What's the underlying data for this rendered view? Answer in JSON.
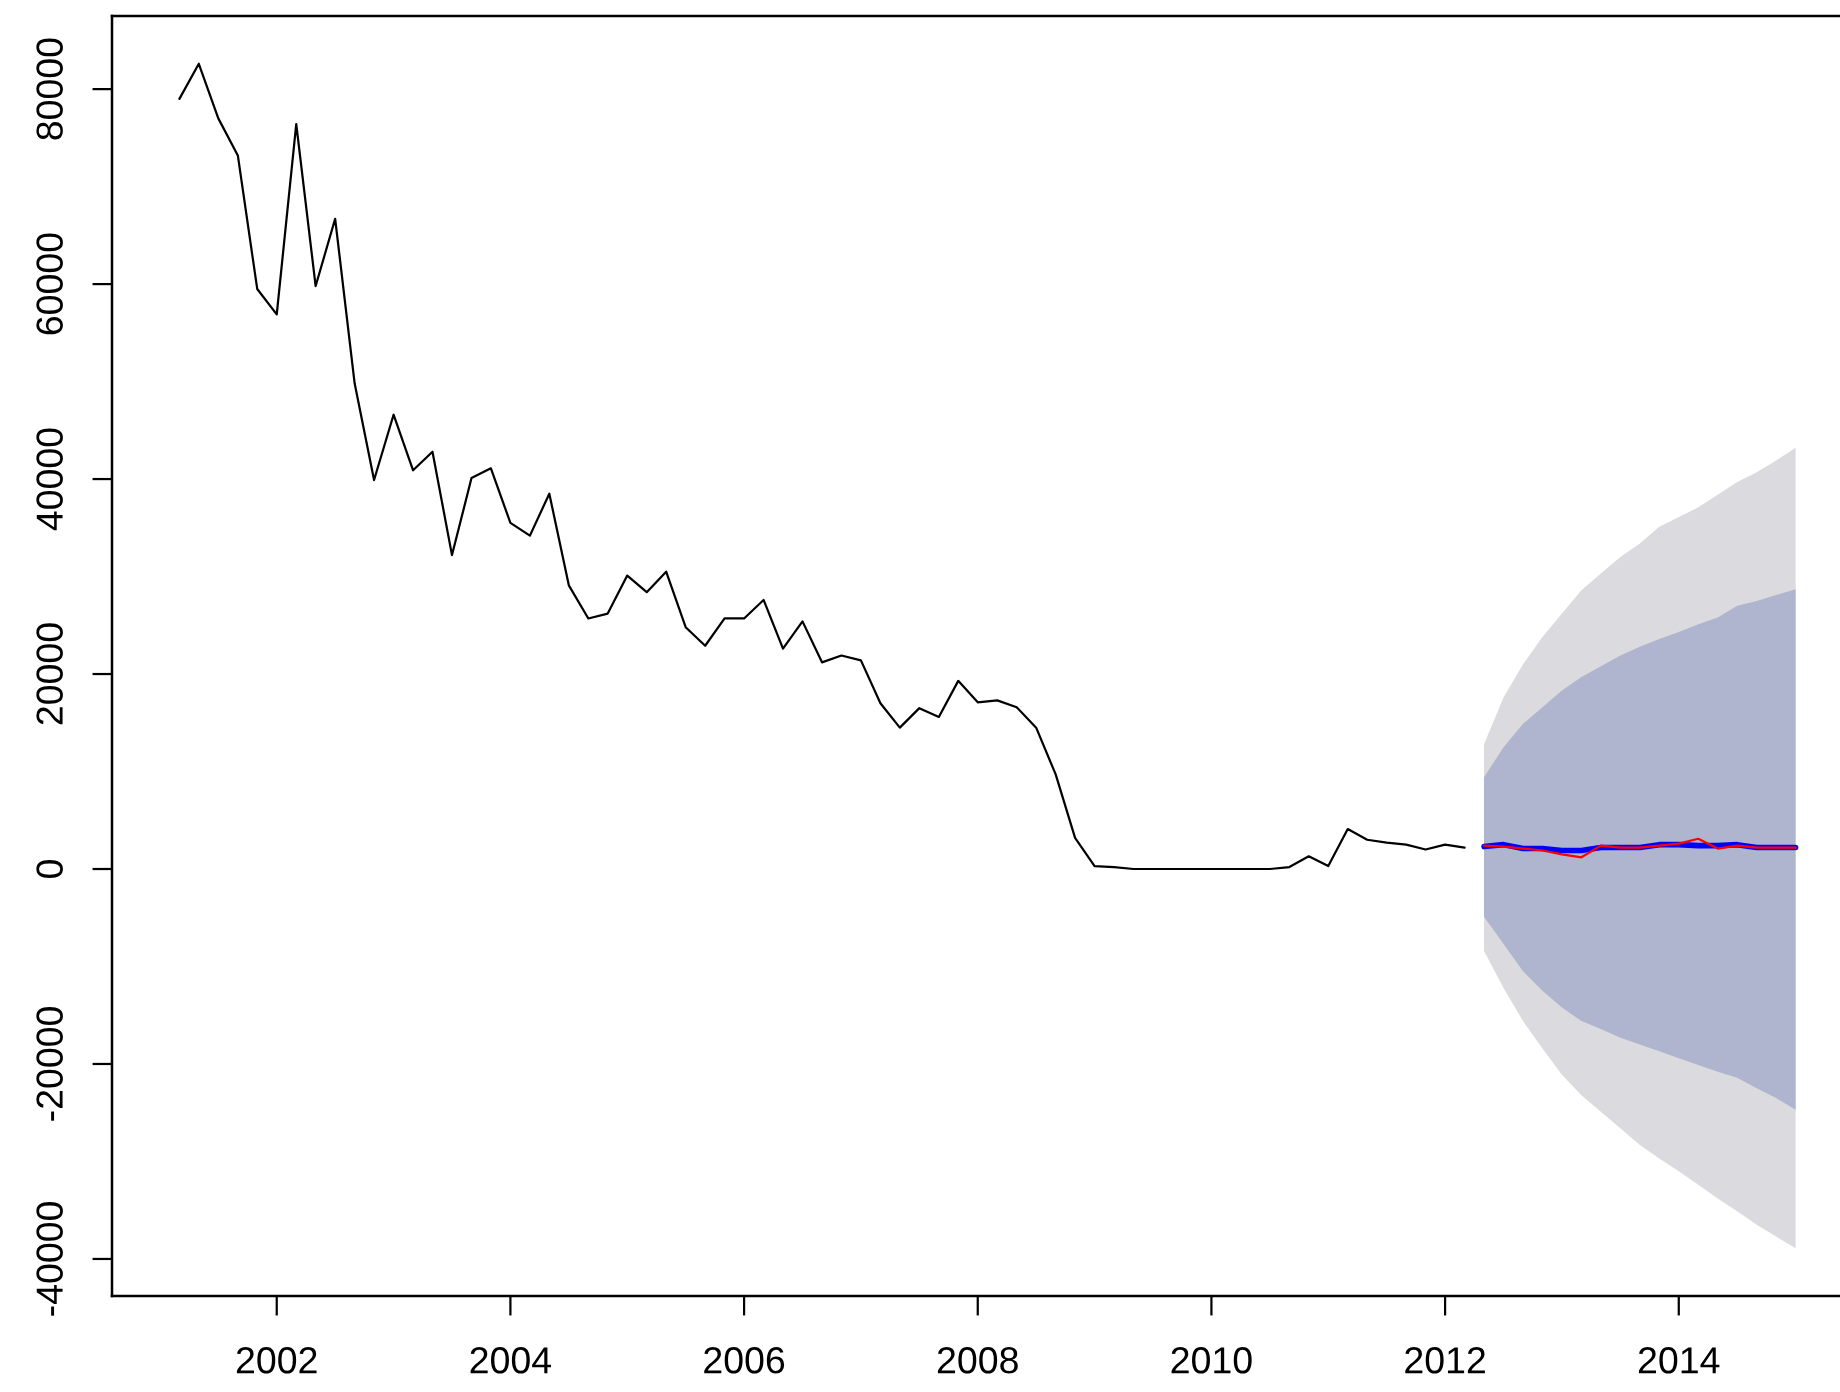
{
  "chart_data": {
    "type": "line",
    "xlim": [
      2000.59,
      2015.38
    ],
    "ylim": [
      -43800,
      87500
    ],
    "xticks": [
      2002,
      2004,
      2006,
      2008,
      2010,
      2012,
      2014
    ],
    "yticks": [
      -40000,
      -20000,
      0,
      20000,
      40000,
      60000,
      80000
    ],
    "grid": false,
    "legend": false,
    "series": [
      {
        "color": "#000000",
        "x": [
          2001.167,
          2001.333,
          2001.5,
          2001.667,
          2001.833,
          2002,
          2002.167,
          2002.333,
          2002.5,
          2002.667,
          2002.833,
          2003,
          2003.167,
          2003.333,
          2003.5,
          2003.667,
          2003.833,
          2004,
          2004.167,
          2004.333,
          2004.5,
          2004.667,
          2004.833,
          2005,
          2005.167,
          2005.333,
          2005.5,
          2005.667,
          2005.833,
          2006,
          2006.167,
          2006.333,
          2006.5,
          2006.667,
          2006.833,
          2007,
          2007.167,
          2007.333,
          2007.5,
          2007.667,
          2007.833,
          2008,
          2008.167,
          2008.333,
          2008.5,
          2008.667,
          2008.833,
          2009,
          2009.167,
          2009.333,
          2009.5,
          2009.667,
          2009.833,
          2010,
          2010.167,
          2010.333,
          2010.5,
          2010.667,
          2010.833,
          2011,
          2011.167,
          2011.333,
          2011.5,
          2011.667,
          2011.833,
          2012,
          2012.167
        ],
        "values": [
          79000,
          82600,
          77000,
          73200,
          59500,
          56900,
          76400,
          59800,
          66700,
          49800,
          39900,
          46600,
          40900,
          42800,
          32200,
          40100,
          41100,
          35500,
          34200,
          38500,
          29100,
          25700,
          26200,
          30100,
          28400,
          30500,
          24800,
          22900,
          25700,
          25700,
          27600,
          22600,
          25400,
          21200,
          21900,
          21400,
          17000,
          14500,
          16500,
          15600,
          19300,
          17100,
          17300,
          16600,
          14500,
          9700,
          3200,
          300,
          200,
          0,
          0,
          0,
          0,
          0,
          0,
          0,
          0,
          200,
          1300,
          300,
          4100,
          3000,
          2700,
          2500,
          2000,
          2500,
          2200
        ]
      },
      {
        "color": "#dbdbdf",
        "x": [
          2012.333,
          2012.5,
          2012.667,
          2012.833,
          2013,
          2013.167,
          2013.333,
          2013.5,
          2013.667,
          2013.833,
          2014,
          2014.167,
          2014.333,
          2014.5,
          2014.667,
          2014.833,
          2015
        ],
        "values": [
          null,
          null,
          null,
          null,
          null,
          null,
          null,
          null,
          null,
          null,
          null,
          null,
          null,
          null,
          null,
          null,
          null
        ],
        "lower": [
          -8400,
          -12200,
          -15600,
          -18400,
          -21100,
          -23200,
          -24900,
          -26600,
          -28300,
          -29700,
          -31000,
          -32400,
          -33800,
          -35100,
          -36500,
          -37700,
          -38900
        ],
        "upper": [
          12800,
          17600,
          21000,
          23800,
          26200,
          28600,
          30300,
          32000,
          33400,
          35100,
          36100,
          37100,
          38400,
          39700,
          40700,
          41900,
          43200
        ]
      },
      {
        "color": "#b0b5cf",
        "x": [
          2012.333,
          2012.5,
          2012.667,
          2012.833,
          2013,
          2013.167,
          2013.333,
          2013.5,
          2013.667,
          2013.833,
          2014,
          2014.167,
          2014.333,
          2014.5,
          2014.667,
          2014.833,
          2015
        ],
        "values": [
          null,
          null,
          null,
          null,
          null,
          null,
          null,
          null,
          null,
          null,
          null,
          null,
          null,
          null,
          null,
          null,
          null
        ],
        "lower": [
          -4900,
          -7700,
          -10500,
          -12500,
          -14200,
          -15600,
          -16400,
          -17300,
          -18000,
          -18700,
          -19400,
          -20100,
          -20800,
          -21400,
          -22500,
          -23500,
          -24700
        ],
        "upper": [
          9400,
          12500,
          14900,
          16600,
          18300,
          19700,
          20800,
          21900,
          22800,
          23600,
          24300,
          25100,
          25800,
          27000,
          27500,
          28100,
          28700
        ]
      },
      {
        "color": "#0000ff",
        "x": [
          2012.333,
          2012.5,
          2012.667,
          2012.833,
          2013,
          2013.167,
          2013.333,
          2013.5,
          2013.667,
          2013.833,
          2014,
          2014.167,
          2014.333,
          2014.5,
          2014.667,
          2014.833,
          2015
        ],
        "values": [
          2300,
          2500,
          2100,
          2100,
          1900,
          1900,
          2200,
          2200,
          2200,
          2500,
          2500,
          2400,
          2400,
          2500,
          2200,
          2200,
          2200
        ]
      },
      {
        "color": "#ff0000",
        "x": [
          2012.333,
          2012.5,
          2012.667,
          2012.833,
          2013,
          2013.167,
          2013.333,
          2013.5,
          2013.667,
          2013.833,
          2014,
          2014.167,
          2014.333,
          2014.5,
          2014.667,
          2014.833,
          2015
        ],
        "values": [
          2400,
          2300,
          2100,
          1900,
          1500,
          1200,
          2400,
          2200,
          2200,
          2400,
          2600,
          3100,
          2100,
          2400,
          2200,
          2200,
          2200
        ]
      }
    ]
  }
}
